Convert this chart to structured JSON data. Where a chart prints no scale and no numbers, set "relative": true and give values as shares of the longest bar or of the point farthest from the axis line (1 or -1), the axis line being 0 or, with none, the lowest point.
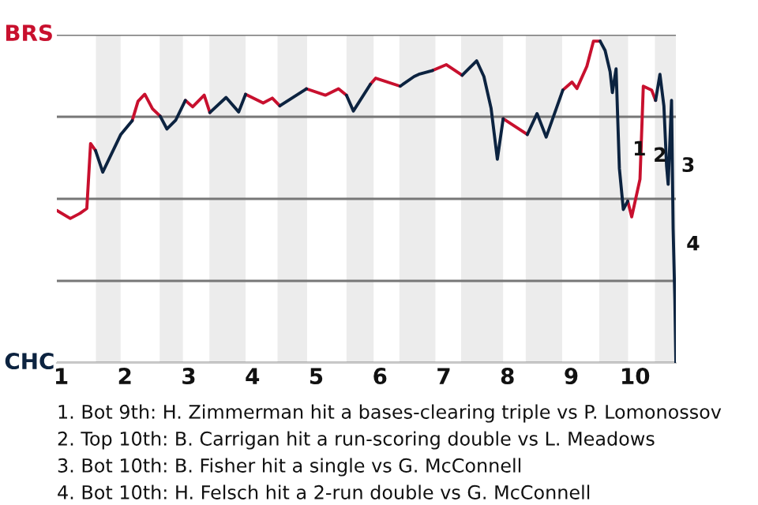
{
  "chart_data": {
    "type": "line",
    "relative": true,
    "series": [
      {
        "color": "#c8102e",
        "x": [
          0.932,
          1.143,
          1.295,
          1.402,
          1.461,
          1.539,
          null,
          2.114,
          2.205,
          2.311,
          2.432,
          2.552,
          null,
          2.948,
          3.062,
          3.243,
          3.332,
          null,
          3.892,
          4.168,
          4.311,
          4.429,
          null,
          4.846,
          5.143,
          5.35,
          5.475,
          null,
          5.85,
          5.933,
          6.317,
          null,
          6.826,
          7.039,
          7.289,
          null,
          7.932,
          8.311,
          null,
          8.868,
          9.011,
          9.089,
          9.245,
          9.348,
          9.453,
          null,
          9.886,
          9.948,
          10.078,
          10.13,
          10.261,
          10.323
        ],
        "values": [
          0.474,
          0.449,
          0.465,
          0.48,
          0.682,
          0.66,
          null,
          0.753,
          0.813,
          0.835,
          0.79,
          0.767,
          null,
          0.816,
          0.796,
          0.832,
          0.778,
          null,
          0.835,
          0.808,
          0.823,
          0.799,
          null,
          0.852,
          0.832,
          0.852,
          0.832,
          null,
          0.866,
          0.885,
          0.86,
          null,
          0.909,
          0.927,
          0.894,
          null,
          0.759,
          0.71,
          null,
          0.848,
          0.873,
          0.853,
          0.922,
          1.0,
          1.0,
          null,
          0.503,
          0.454,
          0.571,
          0.86,
          0.848,
          0.816
        ]
      },
      {
        "color": "#0c2340",
        "x": [
          1.539,
          1.652,
          1.932,
          2.114,
          null,
          2.552,
          2.659,
          2.795,
          2.948,
          null,
          3.332,
          3.586,
          3.784,
          3.892,
          null,
          4.429,
          4.846,
          null,
          5.475,
          5.583,
          5.85,
          null,
          6.317,
          6.535,
          6.609,
          6.826,
          null,
          7.289,
          7.516,
          7.63,
          7.743,
          7.841,
          7.932,
          null,
          8.311,
          8.464,
          8.607,
          8.868,
          null,
          9.453,
          9.531,
          9.609,
          9.645,
          9.703,
          9.755,
          9.817,
          9.886,
          null,
          10.323,
          10.391,
          10.453,
          10.495,
          10.52,
          10.573,
          10.598,
          10.625,
          10.641
        ],
        "values": [
          0.66,
          0.593,
          0.709,
          0.753,
          null,
          0.767,
          0.727,
          0.754,
          0.816,
          null,
          0.778,
          0.825,
          0.78,
          0.835,
          null,
          0.799,
          0.852,
          null,
          0.832,
          0.783,
          0.866,
          null,
          0.86,
          0.89,
          0.897,
          0.909,
          null,
          0.894,
          0.939,
          0.89,
          0.791,
          0.633,
          0.759,
          null,
          0.71,
          0.775,
          0.702,
          0.848,
          null,
          1.0,
          0.971,
          0.905,
          0.84,
          0.914,
          0.604,
          0.477,
          0.503,
          null,
          0.816,
          0.897,
          0.799,
          0.612,
          0.555,
          0.816,
          0.416,
          0.196,
          0.0
        ]
      }
    ],
    "xlim": [
      0.932,
      10.641
    ],
    "xticks": [
      1,
      2,
      3,
      4,
      5,
      6,
      7,
      8,
      9,
      10
    ],
    "grid": "y",
    "bands": [
      {
        "axis": "x",
        "from": 1.545,
        "to": 1.932,
        "color": "#ececec"
      },
      {
        "axis": "x",
        "from": 2.545,
        "to": 2.909,
        "color": "#ececec"
      },
      {
        "axis": "x",
        "from": 3.324,
        "to": 3.892,
        "color": "#ececec"
      },
      {
        "axis": "x",
        "from": 4.393,
        "to": 4.857,
        "color": "#ececec"
      },
      {
        "axis": "x",
        "from": 5.475,
        "to": 5.9,
        "color": "#ececec"
      },
      {
        "axis": "x",
        "from": 6.304,
        "to": 6.87,
        "color": "#ececec"
      },
      {
        "axis": "x",
        "from": 7.273,
        "to": 7.932,
        "color": "#ececec"
      },
      {
        "axis": "x",
        "from": 8.286,
        "to": 8.857,
        "color": "#ececec"
      },
      {
        "axis": "x",
        "from": 9.438,
        "to": 9.891,
        "color": "#ececec"
      },
      {
        "axis": "x",
        "from": 10.312,
        "to": 10.641,
        "color": "#ececec"
      }
    ],
    "annotations": [
      "BRS",
      "CHC",
      {
        "text": "1",
        "x": 9.755,
        "y": 0.662
      },
      {
        "text": "2",
        "x": 10.078,
        "y": 0.642
      },
      {
        "text": "3",
        "x": 10.52,
        "y": 0.611
      },
      {
        "text": "4",
        "x": 10.598,
        "y": 0.367
      },
      "1. Bot 9th: H. Zimmerman hit a bases-clearing triple vs P. Lomonossov",
      "2. Top 10th: B. Carrigan hit a run-scoring double vs L. Meadows",
      "3. Bot 10th: B. Fisher hit a single vs G. McConnell",
      "4. Bot 10th: H. Felsch hit a 2-run double vs G. McConnell"
    ]
  }
}
